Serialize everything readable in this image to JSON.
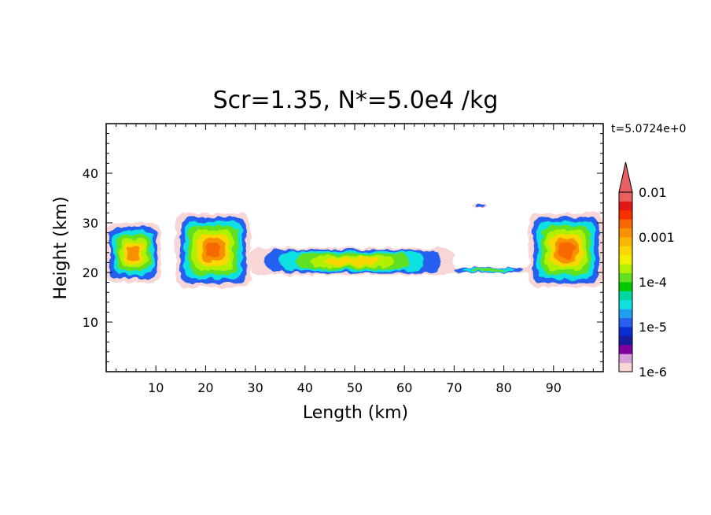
{
  "chart_data": {
    "type": "heatmap",
    "title": "Scr=1.35, N*=5.0e4 /kg",
    "time_label": "t=5.0724e+0",
    "xlabel": "Length  (km)",
    "ylabel": "Height  (km)",
    "xlim": [
      0,
      100
    ],
    "ylim": [
      0,
      50
    ],
    "xticks": [
      10,
      20,
      30,
      40,
      50,
      60,
      70,
      80,
      90
    ],
    "yticks": [
      10,
      20,
      30,
      40
    ],
    "colorbar": {
      "scale": "log",
      "range": [
        1e-06,
        0.01
      ],
      "extend": "max",
      "tick_labels": [
        "0.01",
        "0.001",
        "1e-4",
        "1e-5",
        "1e-6"
      ],
      "tick_values": [
        0.01,
        0.001,
        0.0001,
        1e-05,
        1e-06
      ],
      "colors": [
        "#f8d6d6",
        "#d8a0d8",
        "#8000a0",
        "#1a1aa0",
        "#0a2cd0",
        "#2860f0",
        "#20a0f0",
        "#10e0e0",
        "#00d8a0",
        "#00c800",
        "#60e020",
        "#b0f000",
        "#f0f000",
        "#f8d800",
        "#f8b800",
        "#f89000",
        "#f86800",
        "#f83000",
        "#e01818",
        "#e86060"
      ]
    },
    "regions": [
      {
        "name": "left cloud mass",
        "x": [
          0,
          11
        ],
        "y": [
          18,
          30
        ],
        "peak": 0.001
      },
      {
        "name": "cloud mass near 20 km",
        "x": [
          14,
          29
        ],
        "y": [
          17,
          32
        ],
        "peak": 0.003
      },
      {
        "name": "central cloud band",
        "x": [
          29,
          70
        ],
        "y": [
          19.5,
          25
        ],
        "peak": 0.0005
      },
      {
        "name": "thin layer",
        "x": [
          68,
          86
        ],
        "y": [
          20,
          21
        ],
        "peak": 0.0001
      },
      {
        "name": "isolated cell",
        "x": [
          73.5,
          77
        ],
        "y": [
          33,
          34
        ],
        "peak": 1e-05
      },
      {
        "name": "right cloud mass",
        "x": [
          85,
          100
        ],
        "y": [
          17,
          32
        ],
        "peak": 0.002
      }
    ]
  }
}
